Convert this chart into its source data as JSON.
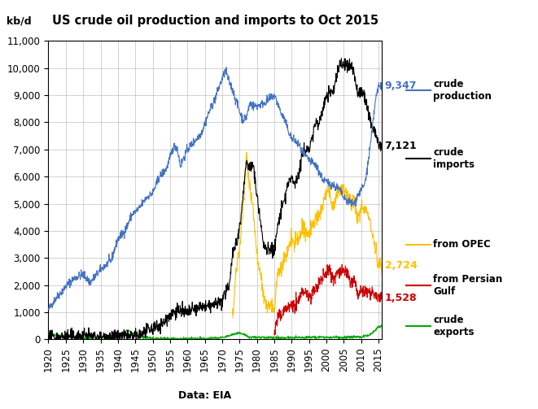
{
  "title": "US crude oil production and imports to Oct 2015",
  "ylabel": "kb/d",
  "xlabel": "Data: EIA",
  "ylim": [
    0,
    11000
  ],
  "xlim": [
    1920,
    2016
  ],
  "yticks": [
    0,
    1000,
    2000,
    3000,
    4000,
    5000,
    6000,
    7000,
    8000,
    9000,
    10000,
    11000
  ],
  "xticks": [
    1920,
    1925,
    1930,
    1935,
    1940,
    1945,
    1950,
    1955,
    1960,
    1965,
    1970,
    1975,
    1980,
    1985,
    1990,
    1995,
    2000,
    2005,
    2010,
    2015
  ],
  "colors": {
    "production": "#4472C4",
    "imports": "#000000",
    "opec": "#FFC000",
    "persian_gulf": "#CC0000",
    "exports": "#00AA00"
  },
  "end_labels": {
    "production": {
      "text": "9,347",
      "y": 9347,
      "color": "#4472C4"
    },
    "imports": {
      "text": "7,121",
      "y": 7121,
      "color": "#000000"
    },
    "opec": {
      "text": "2,724",
      "y": 2724,
      "color": "#FFC000"
    },
    "persian_gulf": {
      "text": "1,528",
      "y": 1528,
      "color": "#CC0000"
    }
  },
  "legend_labels": [
    {
      "label": "crude\nproduction",
      "color": "#4472C4"
    },
    {
      "label": "crude\nimports",
      "color": "#000000"
    },
    {
      "label": "from OPEC",
      "color": "#FFC000"
    },
    {
      "label": "from Persian\nGulf",
      "color": "#CC0000"
    },
    {
      "label": "crude\nexports",
      "color": "#00AA00"
    }
  ]
}
